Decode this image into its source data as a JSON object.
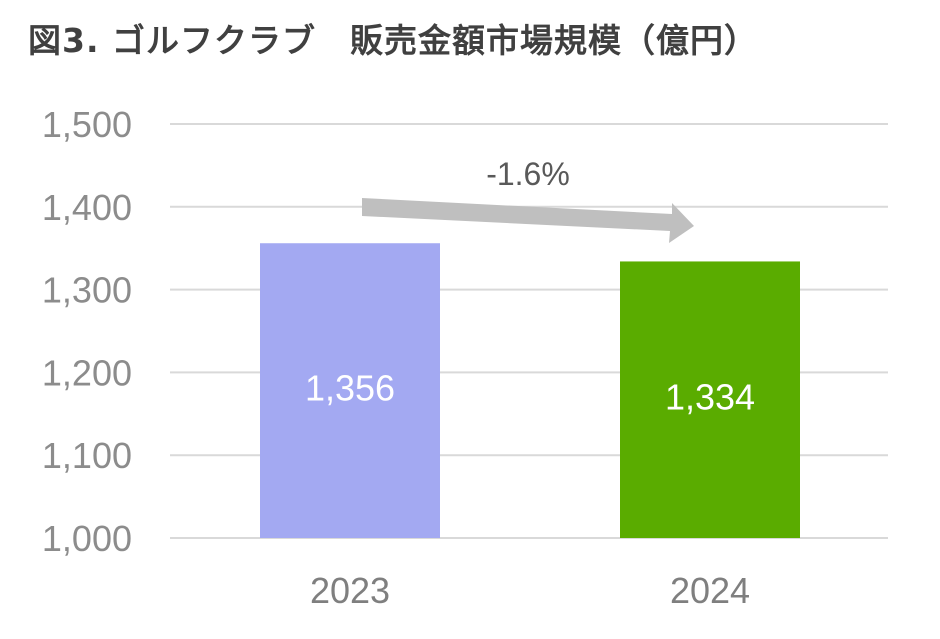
{
  "chart_data": {
    "type": "bar",
    "title": "図3. ゴルフクラブ　販売金額市場規模（億円）",
    "categories": [
      "2023",
      "2024"
    ],
    "values": [
      1356,
      1334
    ],
    "data_labels": [
      "1,356",
      "1,334"
    ],
    "bar_colors": [
      "#a3a9f2",
      "#5aac00"
    ],
    "ylim": [
      1000,
      1500
    ],
    "yticks": [
      1000,
      1100,
      1200,
      1300,
      1400,
      1500
    ],
    "ytick_labels": [
      "1,000",
      "1,100",
      "1,200",
      "1,300",
      "1,400",
      "1,500"
    ],
    "grid": true,
    "annotation": {
      "text": "-1.6%",
      "type": "arrow",
      "color": "#bfbfbf"
    }
  }
}
